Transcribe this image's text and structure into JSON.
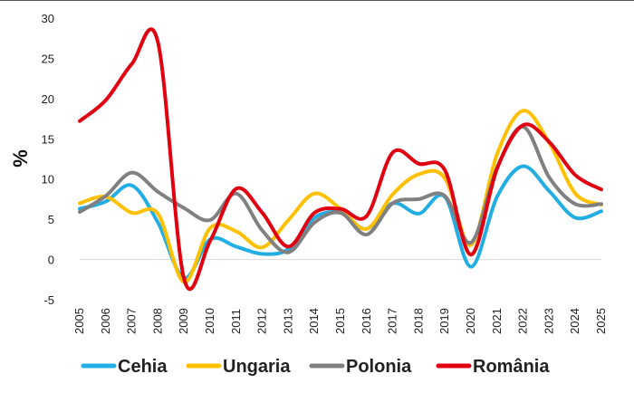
{
  "chart_data": {
    "type": "line",
    "title": "",
    "xlabel": "",
    "ylabel": "%",
    "ylim": [
      -5,
      30
    ],
    "yticks": [
      -5,
      0,
      5,
      10,
      15,
      20,
      25,
      30
    ],
    "grid": false,
    "legend_position": "bottom",
    "categories": [
      "2005",
      "2006",
      "2007",
      "2008",
      "2009",
      "2010",
      "2011",
      "2012",
      "2013",
      "2014",
      "2015",
      "2016",
      "2017",
      "2018",
      "2019",
      "2020",
      "2021",
      "2022",
      "2023",
      "2024",
      "2025"
    ],
    "series": [
      {
        "name": "Cehia",
        "color": "#22aee3",
        "values": [
          6.3,
          7.2,
          9.2,
          4.6,
          -2.3,
          2.5,
          1.6,
          0.7,
          1.3,
          5.2,
          5.8,
          3.8,
          7.0,
          5.7,
          7.8,
          -0.9,
          7.8,
          11.6,
          8.5,
          5.2,
          6.0
        ]
      },
      {
        "name": "Ungaria",
        "color": "#ffc000",
        "values": [
          7.0,
          7.8,
          5.8,
          5.7,
          -2.8,
          3.9,
          3.5,
          1.5,
          4.9,
          8.2,
          6.3,
          3.8,
          8.1,
          10.6,
          10.1,
          1.8,
          13.1,
          18.5,
          14.5,
          8.2,
          6.8
        ]
      },
      {
        "name": "Polonia",
        "color": "#808080",
        "values": [
          5.9,
          7.9,
          10.8,
          8.4,
          6.4,
          4.9,
          8.2,
          3.6,
          0.9,
          4.6,
          5.8,
          3.1,
          7.0,
          7.5,
          7.9,
          2.1,
          11.4,
          16.5,
          10.2,
          6.9,
          6.9
        ]
      },
      {
        "name": "România",
        "color": "#e0000f",
        "values": [
          17.2,
          19.8,
          24.3,
          27.0,
          -2.4,
          2.3,
          8.8,
          5.8,
          1.6,
          5.8,
          6.3,
          5.4,
          13.3,
          11.9,
          11.1,
          0.6,
          11.3,
          16.7,
          14.6,
          10.5,
          8.7
        ]
      }
    ]
  }
}
